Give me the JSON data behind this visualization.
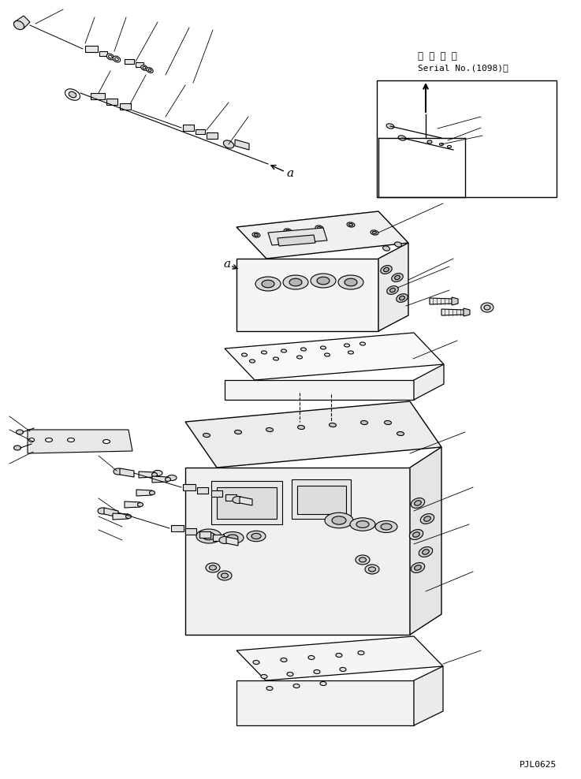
{
  "background_color": "#ffffff",
  "line_color": "#000000",
  "fig_width": 7.37,
  "fig_height": 9.88,
  "dpi": 100,
  "watermark": "PJL0625",
  "serial_text1": "適 用 号 機",
  "serial_text2": "Serial No.(1098)～"
}
